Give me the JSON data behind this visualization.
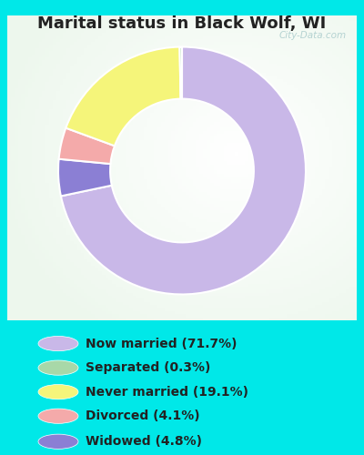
{
  "title": "Marital status in Black Wolf, WI",
  "wedge_labels": [
    "Now married",
    "Widowed",
    "Divorced",
    "Never married",
    "Separated"
  ],
  "wedge_values": [
    71.7,
    4.8,
    4.1,
    19.1,
    0.3
  ],
  "wedge_colors": [
    "#c9b8e8",
    "#8b7fd4",
    "#f4aaaa",
    "#f5f57a",
    "#a8d8a8"
  ],
  "legend_labels": [
    "Now married (71.7%)",
    "Separated (0.3%)",
    "Never married (19.1%)",
    "Divorced (4.1%)",
    "Widowed (4.8%)"
  ],
  "legend_colors": [
    "#c9b8e8",
    "#a8d8a8",
    "#f5f57a",
    "#f4aaaa",
    "#8b7fd4"
  ],
  "bg_color": "#00e8e8",
  "chart_bg_color": "#d8edd8",
  "title_fontsize": 13,
  "title_color": "#222222",
  "watermark": "City-Data.com",
  "legend_fontsize": 10
}
